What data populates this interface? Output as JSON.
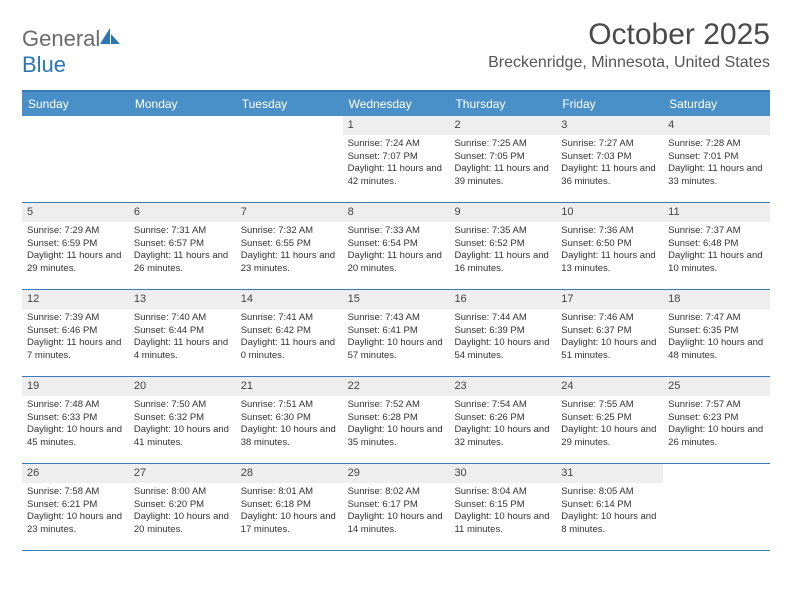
{
  "logo": {
    "word1": "General",
    "word2": "Blue"
  },
  "title": "October 2025",
  "location": "Breckenridge, Minnesota, United States",
  "colors": {
    "header_bar": "#4a90c8",
    "header_border": "#3a7ab8",
    "daynum_bg": "#eeeeee",
    "logo_gray": "#6b6b6b",
    "logo_blue": "#2e75b6"
  },
  "weekdays": [
    "Sunday",
    "Monday",
    "Tuesday",
    "Wednesday",
    "Thursday",
    "Friday",
    "Saturday"
  ],
  "weeks": [
    [
      null,
      null,
      null,
      {
        "n": "1",
        "sr": "7:24 AM",
        "ss": "7:07 PM",
        "dl": "11 hours and 42 minutes."
      },
      {
        "n": "2",
        "sr": "7:25 AM",
        "ss": "7:05 PM",
        "dl": "11 hours and 39 minutes."
      },
      {
        "n": "3",
        "sr": "7:27 AM",
        "ss": "7:03 PM",
        "dl": "11 hours and 36 minutes."
      },
      {
        "n": "4",
        "sr": "7:28 AM",
        "ss": "7:01 PM",
        "dl": "11 hours and 33 minutes."
      }
    ],
    [
      {
        "n": "5",
        "sr": "7:29 AM",
        "ss": "6:59 PM",
        "dl": "11 hours and 29 minutes."
      },
      {
        "n": "6",
        "sr": "7:31 AM",
        "ss": "6:57 PM",
        "dl": "11 hours and 26 minutes."
      },
      {
        "n": "7",
        "sr": "7:32 AM",
        "ss": "6:55 PM",
        "dl": "11 hours and 23 minutes."
      },
      {
        "n": "8",
        "sr": "7:33 AM",
        "ss": "6:54 PM",
        "dl": "11 hours and 20 minutes."
      },
      {
        "n": "9",
        "sr": "7:35 AM",
        "ss": "6:52 PM",
        "dl": "11 hours and 16 minutes."
      },
      {
        "n": "10",
        "sr": "7:36 AM",
        "ss": "6:50 PM",
        "dl": "11 hours and 13 minutes."
      },
      {
        "n": "11",
        "sr": "7:37 AM",
        "ss": "6:48 PM",
        "dl": "11 hours and 10 minutes."
      }
    ],
    [
      {
        "n": "12",
        "sr": "7:39 AM",
        "ss": "6:46 PM",
        "dl": "11 hours and 7 minutes."
      },
      {
        "n": "13",
        "sr": "7:40 AM",
        "ss": "6:44 PM",
        "dl": "11 hours and 4 minutes."
      },
      {
        "n": "14",
        "sr": "7:41 AM",
        "ss": "6:42 PM",
        "dl": "11 hours and 0 minutes."
      },
      {
        "n": "15",
        "sr": "7:43 AM",
        "ss": "6:41 PM",
        "dl": "10 hours and 57 minutes."
      },
      {
        "n": "16",
        "sr": "7:44 AM",
        "ss": "6:39 PM",
        "dl": "10 hours and 54 minutes."
      },
      {
        "n": "17",
        "sr": "7:46 AM",
        "ss": "6:37 PM",
        "dl": "10 hours and 51 minutes."
      },
      {
        "n": "18",
        "sr": "7:47 AM",
        "ss": "6:35 PM",
        "dl": "10 hours and 48 minutes."
      }
    ],
    [
      {
        "n": "19",
        "sr": "7:48 AM",
        "ss": "6:33 PM",
        "dl": "10 hours and 45 minutes."
      },
      {
        "n": "20",
        "sr": "7:50 AM",
        "ss": "6:32 PM",
        "dl": "10 hours and 41 minutes."
      },
      {
        "n": "21",
        "sr": "7:51 AM",
        "ss": "6:30 PM",
        "dl": "10 hours and 38 minutes."
      },
      {
        "n": "22",
        "sr": "7:52 AM",
        "ss": "6:28 PM",
        "dl": "10 hours and 35 minutes."
      },
      {
        "n": "23",
        "sr": "7:54 AM",
        "ss": "6:26 PM",
        "dl": "10 hours and 32 minutes."
      },
      {
        "n": "24",
        "sr": "7:55 AM",
        "ss": "6:25 PM",
        "dl": "10 hours and 29 minutes."
      },
      {
        "n": "25",
        "sr": "7:57 AM",
        "ss": "6:23 PM",
        "dl": "10 hours and 26 minutes."
      }
    ],
    [
      {
        "n": "26",
        "sr": "7:58 AM",
        "ss": "6:21 PM",
        "dl": "10 hours and 23 minutes."
      },
      {
        "n": "27",
        "sr": "8:00 AM",
        "ss": "6:20 PM",
        "dl": "10 hours and 20 minutes."
      },
      {
        "n": "28",
        "sr": "8:01 AM",
        "ss": "6:18 PM",
        "dl": "10 hours and 17 minutes."
      },
      {
        "n": "29",
        "sr": "8:02 AM",
        "ss": "6:17 PM",
        "dl": "10 hours and 14 minutes."
      },
      {
        "n": "30",
        "sr": "8:04 AM",
        "ss": "6:15 PM",
        "dl": "10 hours and 11 minutes."
      },
      {
        "n": "31",
        "sr": "8:05 AM",
        "ss": "6:14 PM",
        "dl": "10 hours and 8 minutes."
      },
      null
    ]
  ],
  "labels": {
    "sunrise": "Sunrise:",
    "sunset": "Sunset:",
    "daylight": "Daylight:"
  }
}
